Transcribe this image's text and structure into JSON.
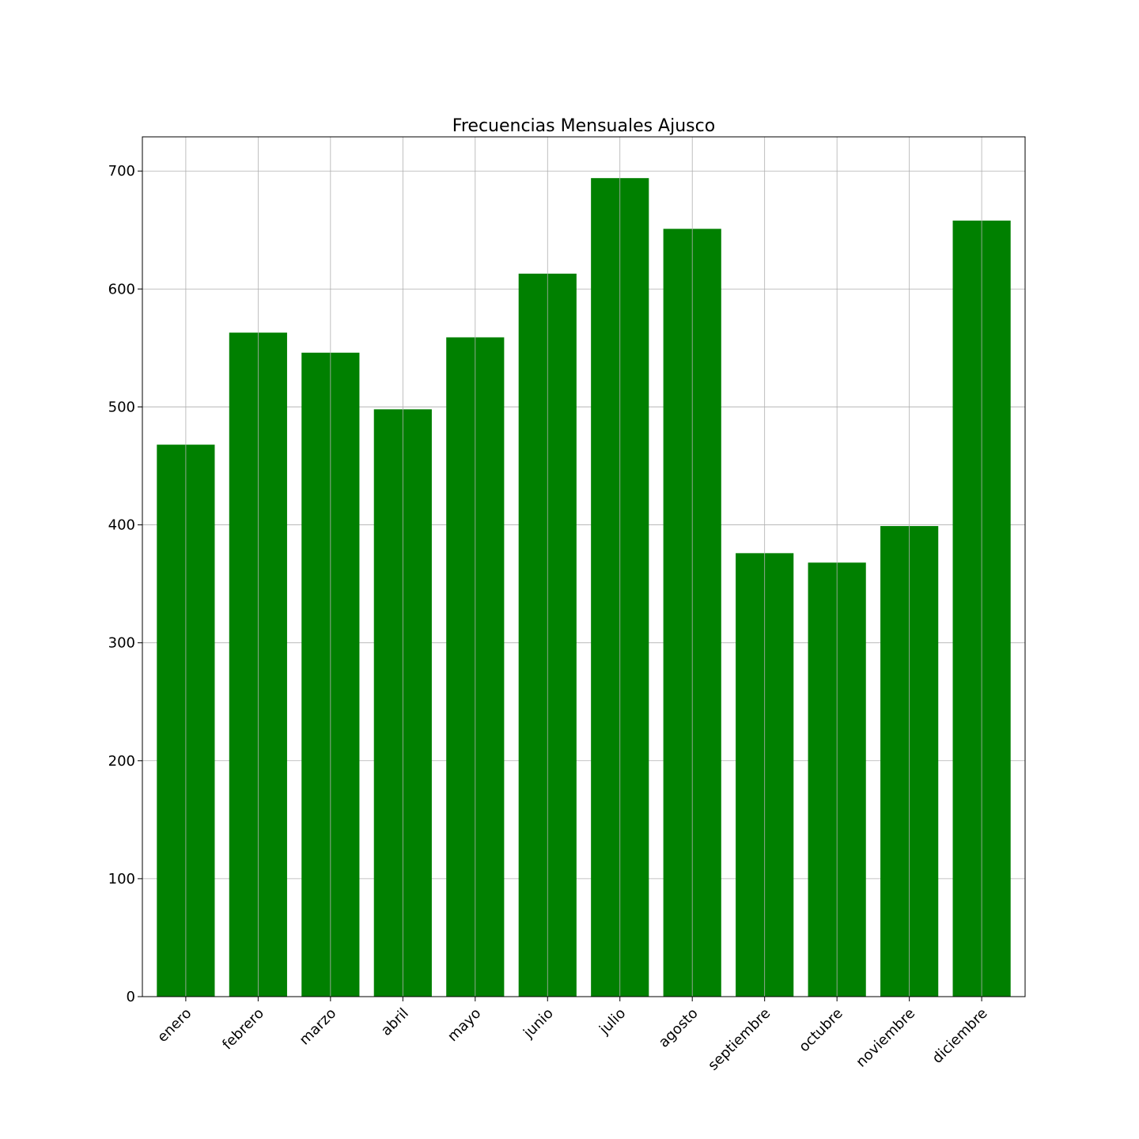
{
  "chart_data": {
    "type": "bar",
    "title": "Frecuencias Mensuales Ajusco",
    "xlabel": "",
    "ylabel": "",
    "categories": [
      "enero",
      "febrero",
      "marzo",
      "abril",
      "mayo",
      "junio",
      "julio",
      "agosto",
      "septiembre",
      "octubre",
      "noviembre",
      "diciembre"
    ],
    "values": [
      468,
      563,
      546,
      498,
      559,
      613,
      694,
      651,
      376,
      368,
      399,
      658
    ],
    "ylim": [
      0,
      729
    ],
    "yticks": [
      0,
      100,
      200,
      300,
      400,
      500,
      600,
      700
    ],
    "grid": true,
    "legend": "none",
    "bar_color": "#008000",
    "x_tick_rotation_deg": 45
  }
}
